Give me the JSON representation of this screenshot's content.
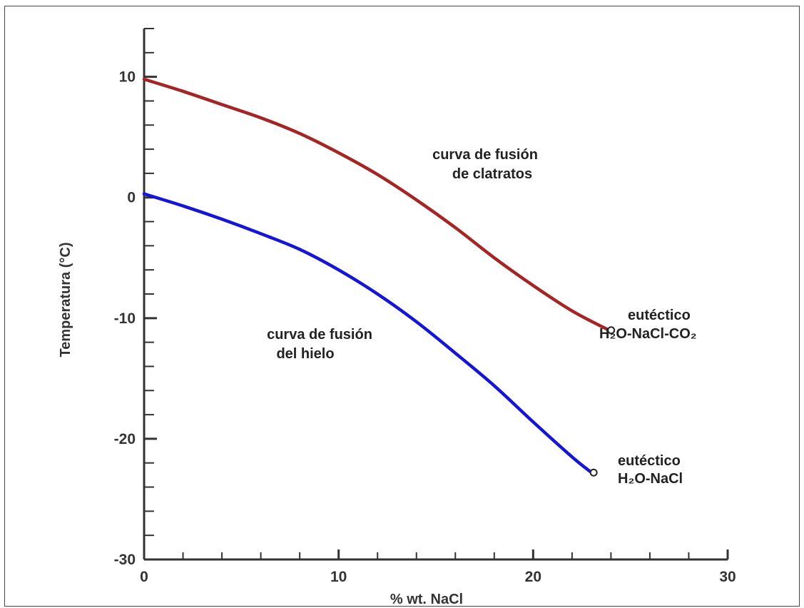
{
  "chart_data": {
    "type": "line",
    "title": "",
    "xlabel": "% wt. NaCl",
    "ylabel": "Temperatura  (°C)",
    "xlim": [
      0,
      30
    ],
    "ylim": [
      -30,
      14
    ],
    "x_ticks": [
      "0",
      "10",
      "20",
      "30"
    ],
    "y_ticks": [
      "10",
      "0",
      "-10",
      "-20",
      "-30"
    ],
    "x_tick_values": [
      0,
      10,
      20,
      30
    ],
    "y_tick_values": [
      10,
      0,
      -10,
      -20,
      -30
    ],
    "grid": false,
    "legend": "none",
    "series": [
      {
        "color": "#a52525",
        "x": [
          0,
          2,
          4,
          6,
          8,
          10,
          12,
          14,
          16,
          18,
          20,
          22,
          23.9
        ],
        "y": [
          9.8,
          8.8,
          7.7,
          6.6,
          5.3,
          3.7,
          1.9,
          -0.2,
          -2.5,
          -5.0,
          -7.3,
          -9.4,
          -11.0
        ],
        "end_marker": "open-circle"
      },
      {
        "color": "#1515d8",
        "x": [
          0,
          2,
          4,
          6,
          8,
          10,
          12,
          14,
          16,
          18,
          20,
          22,
          23
        ],
        "y": [
          0.3,
          -0.7,
          -1.8,
          -3.0,
          -4.3,
          -6.0,
          -8.0,
          -10.3,
          -12.9,
          -15.6,
          -18.6,
          -21.5,
          -22.8
        ],
        "end_marker": "open-circle"
      }
    ],
    "annotations": {
      "clathrate_label": [
        "curva de fusión",
        "de clatratos"
      ],
      "ice_label": [
        "curva de fusión",
        "del hielo"
      ],
      "eutectic_co2": [
        "eutéctico",
        "H₂O-NaCl-CO₂"
      ],
      "eutectic_nacl": [
        "eutéctico",
        "H₂O-NaCl"
      ]
    }
  }
}
